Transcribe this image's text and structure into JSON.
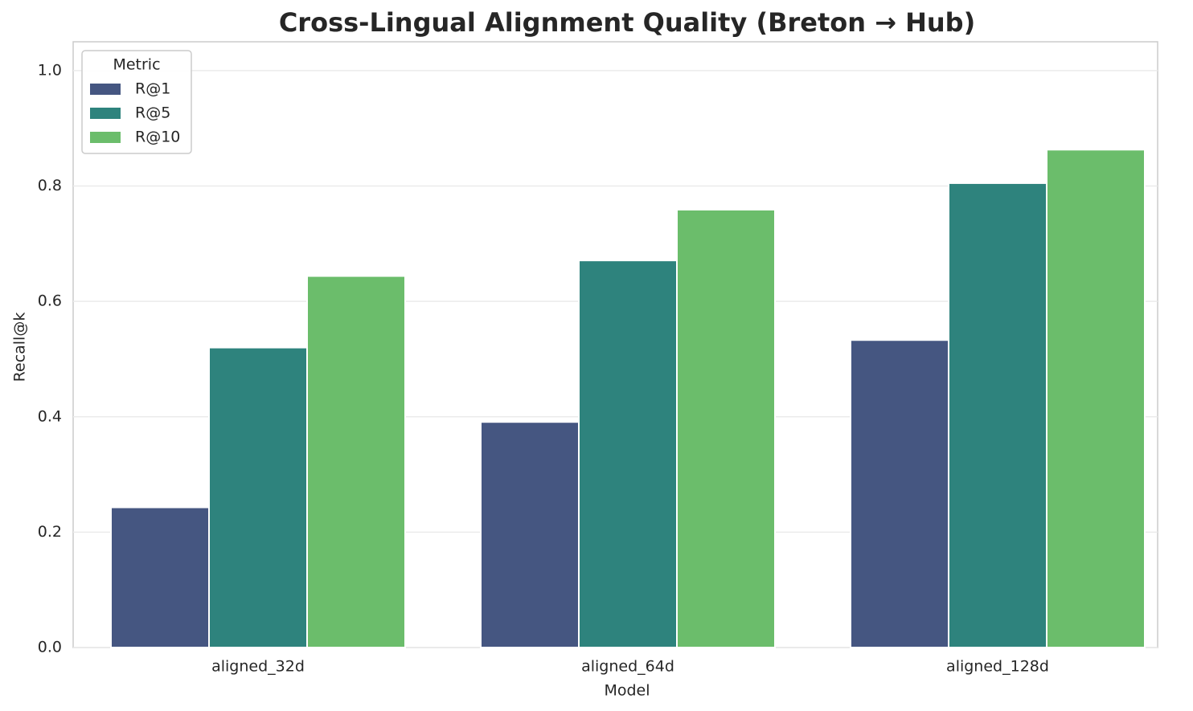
{
  "chart_data": {
    "type": "bar",
    "title": "Cross-Lingual Alignment Quality (Breton → Hub)",
    "x_label": "Model",
    "y_label": "Recall@k",
    "categories": [
      "aligned_32d",
      "aligned_64d",
      "aligned_128d"
    ],
    "series": [
      {
        "name": "R@1",
        "color": "#455681",
        "values": [
          0.243,
          0.391,
          0.533
        ]
      },
      {
        "name": "R@5",
        "color": "#2e837d",
        "values": [
          0.52,
          0.671,
          0.805
        ]
      },
      {
        "name": "R@10",
        "color": "#6bbd6b",
        "values": [
          0.644,
          0.759,
          0.863
        ]
      }
    ],
    "legend_title": "Metric",
    "legend_position": "upper-left",
    "ylim": [
      0,
      1.05
    ],
    "yticks": [
      {
        "value": 0,
        "label": "0.0"
      },
      0.2,
      0.4,
      0.6,
      0.8,
      {
        "value": 1,
        "label": "1.0"
      }
    ],
    "grid": true
  }
}
